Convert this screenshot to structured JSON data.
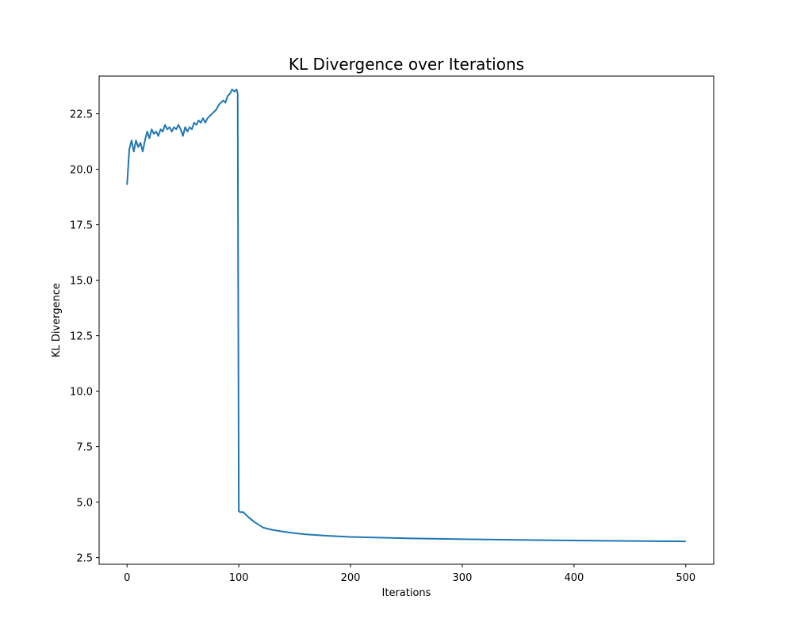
{
  "chart_data": {
    "type": "line",
    "title": "KL Divergence over Iterations",
    "xlabel": "Iterations",
    "ylabel": "KL Divergence",
    "xlim": [
      -25,
      525
    ],
    "ylim": [
      2.2,
      24.2
    ],
    "x_ticks": [
      0,
      100,
      200,
      300,
      400,
      500
    ],
    "x_tick_labels": [
      "0",
      "100",
      "200",
      "300",
      "400",
      "500"
    ],
    "y_ticks": [
      2.5,
      5.0,
      7.5,
      10.0,
      12.5,
      15.0,
      17.5,
      20.0,
      22.5
    ],
    "y_tick_labels": [
      "2.5",
      "5.0",
      "7.5",
      "10.0",
      "12.5",
      "15.0",
      "17.5",
      "20.0",
      "22.5"
    ],
    "grid": false,
    "legend": "none",
    "series": [
      {
        "color": "#1f77b4",
        "x": [
          0,
          2,
          4,
          6,
          8,
          10,
          12,
          14,
          16,
          18,
          20,
          22,
          24,
          26,
          28,
          30,
          32,
          34,
          36,
          38,
          40,
          42,
          44,
          46,
          48,
          50,
          52,
          54,
          56,
          58,
          60,
          62,
          64,
          66,
          68,
          70,
          72,
          74,
          76,
          78,
          80,
          82,
          84,
          86,
          88,
          90,
          92,
          94,
          96,
          98,
          99,
          100,
          101,
          104,
          108,
          114,
          122,
          130,
          140,
          150,
          160,
          180,
          200,
          250,
          300,
          350,
          400,
          450,
          500
        ],
        "y": [
          19.3,
          20.9,
          21.3,
          20.8,
          21.3,
          21.0,
          21.2,
          20.8,
          21.3,
          21.7,
          21.4,
          21.8,
          21.6,
          21.7,
          21.5,
          21.8,
          21.7,
          22.0,
          21.8,
          21.9,
          21.7,
          21.9,
          21.8,
          22.0,
          21.8,
          21.5,
          21.9,
          21.7,
          21.9,
          21.8,
          22.1,
          22.0,
          22.2,
          22.1,
          22.3,
          22.1,
          22.3,
          22.4,
          22.5,
          22.6,
          22.7,
          22.9,
          23.0,
          23.1,
          23.0,
          23.3,
          23.4,
          23.6,
          23.5,
          23.6,
          23.4,
          4.6,
          4.55,
          4.55,
          4.35,
          4.1,
          3.85,
          3.75,
          3.67,
          3.6,
          3.55,
          3.48,
          3.43,
          3.37,
          3.33,
          3.3,
          3.27,
          3.25,
          3.23
        ]
      }
    ]
  }
}
